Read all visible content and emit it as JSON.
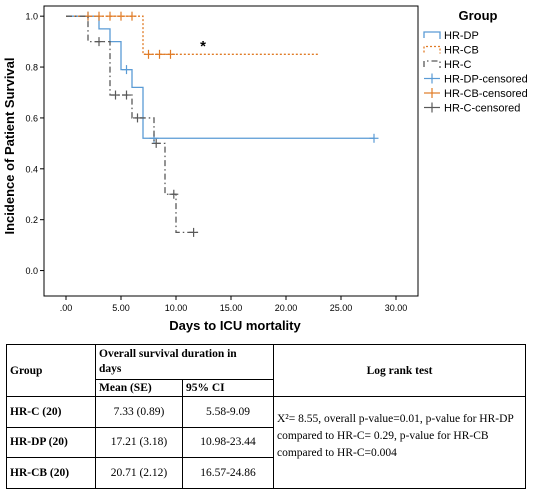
{
  "chart_data": {
    "type": "line",
    "title": "",
    "xlabel": "Days to ICU mortality",
    "ylabel": "Incidence of Patient Survival",
    "xlim": [
      -2,
      32
    ],
    "ylim": [
      -0.1,
      1.04
    ],
    "x_ticks": [
      ".00",
      "5.00",
      "10.00",
      "15.00",
      "20.00",
      "25.00",
      "30.00"
    ],
    "x_tick_values": [
      0,
      5,
      10,
      15,
      20,
      25,
      30
    ],
    "y_ticks": [
      "0.0",
      "0.2",
      "0.4",
      "0.6",
      "0.8",
      "1.0"
    ],
    "y_tick_values": [
      0,
      0.2,
      0.4,
      0.6,
      0.8,
      1.0
    ],
    "grid": false,
    "legend_title": "Group",
    "legend_position": "right",
    "annotation": "*",
    "series": [
      {
        "name": "HR-DP",
        "censored_name": "HR-DP-censored",
        "color": "#5a9bd5",
        "dash": "solid",
        "steps": [
          [
            0,
            1.0
          ],
          [
            3,
            0.95
          ],
          [
            4,
            0.9
          ],
          [
            5,
            0.79
          ],
          [
            6,
            0.72
          ],
          [
            7,
            0.52
          ],
          [
            28,
            0.52
          ]
        ],
        "censored": [
          [
            2,
            1.0
          ],
          [
            5.5,
            0.79
          ],
          [
            8,
            0.52
          ],
          [
            28,
            0.52
          ]
        ]
      },
      {
        "name": "HR-CB",
        "censored_name": "HR-CB-censored",
        "color": "#e07b26",
        "dash": "dot",
        "steps": [
          [
            0,
            1.0
          ],
          [
            7,
            0.85
          ],
          [
            23,
            0.85
          ]
        ],
        "censored": [
          [
            2,
            1.0
          ],
          [
            3,
            1.0
          ],
          [
            4,
            1.0
          ],
          [
            5,
            1.0
          ],
          [
            6,
            1.0
          ],
          [
            7.5,
            0.85
          ],
          [
            8.5,
            0.85
          ],
          [
            9.5,
            0.85
          ]
        ]
      },
      {
        "name": "HR-C",
        "censored_name": "HR-C-censored",
        "color": "#595959",
        "dash": "dashdot",
        "steps": [
          [
            0,
            1.0
          ],
          [
            2,
            0.9
          ],
          [
            4,
            0.69
          ],
          [
            5,
            0.69
          ],
          [
            6,
            0.6
          ],
          [
            8,
            0.5
          ],
          [
            9,
            0.3
          ],
          [
            10,
            0.15
          ],
          [
            12,
            0.15
          ]
        ],
        "censored": [
          [
            3,
            0.9
          ],
          [
            4.5,
            0.69
          ],
          [
            5.5,
            0.69
          ],
          [
            6.5,
            0.6
          ],
          [
            8.2,
            0.5
          ],
          [
            9.8,
            0.3
          ],
          [
            11.6,
            0.15
          ]
        ]
      }
    ]
  },
  "table": {
    "headers": {
      "group": "Group",
      "overall_line1": "Overall survival duration in",
      "overall_line2": "days",
      "mean": "Mean (SE)",
      "ci": "95% CI",
      "logrank": "Log rank test"
    },
    "rows": [
      {
        "group": "HR-C (20)",
        "mean": "7.33 (0.89)",
        "ci": "5.58-9.09"
      },
      {
        "group": "HR-DP (20)",
        "mean": "17.21 (3.18)",
        "ci": "10.98-23.44"
      },
      {
        "group": "HR-CB (20)",
        "mean": "20.71 (2.12)",
        "ci": "16.57-24.86"
      }
    ],
    "logrank_text": "X²= 8.55, overall p-value=0.01, p-value for HR-DP compared to HR-C= 0.29, p-value for HR-CB compared to HR-C=0.004"
  }
}
